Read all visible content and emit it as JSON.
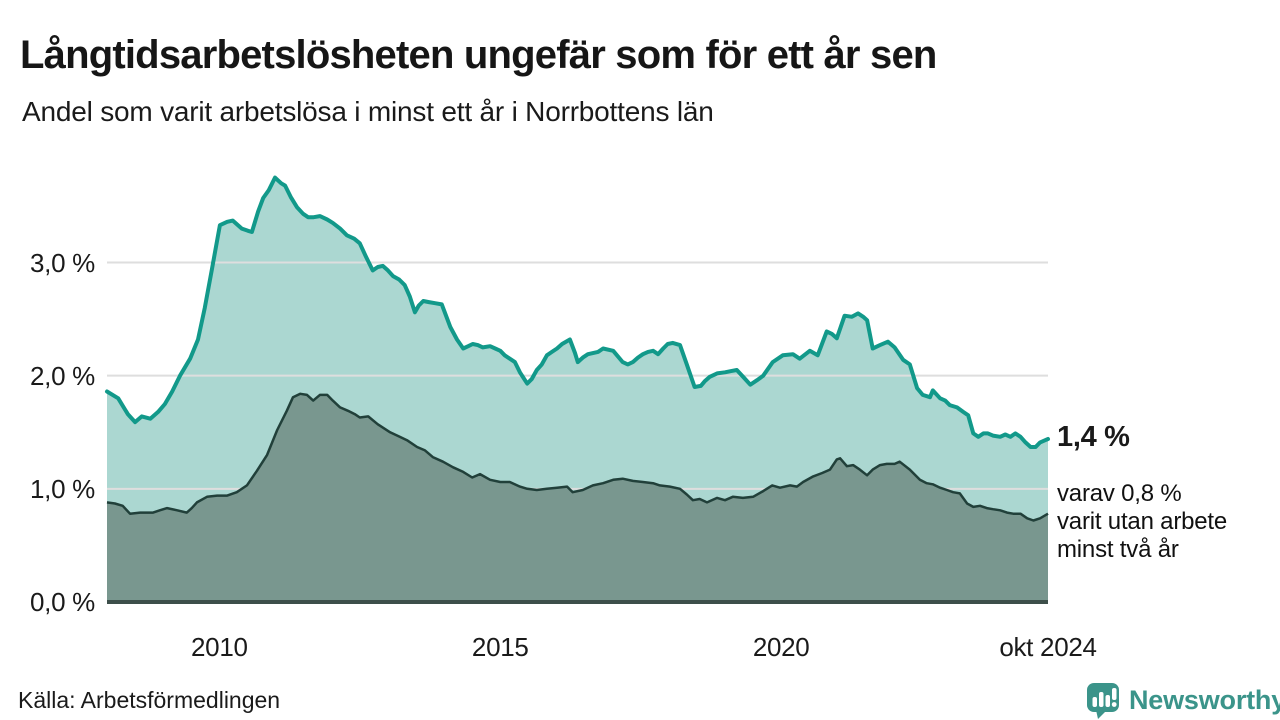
{
  "header": {
    "title": "Långtidsarbetslösheten ungefär som för ett år sen",
    "subtitle": "Andel som varit arbetslösa i minst ett år i Norrbottens län"
  },
  "annotation": {
    "latest_value": "1,4 %",
    "note_lines": [
      "varav 0,8 %",
      "varit utan arbete",
      "minst två år"
    ]
  },
  "footer": {
    "source": "Källa: Arbetsförmedlingen",
    "logo_text": "Newsworthy"
  },
  "colors": {
    "series1_line": "#12998a",
    "series1_fill": "#abd7d1",
    "series2_line": "#21403a",
    "series2_fill": "#79978f",
    "gridline": "#dedede",
    "baseline": "#3d4f4a",
    "text": "#1a1a1a",
    "logo": "#3b948a"
  },
  "chart_data": {
    "type": "area",
    "title": "Långtidsarbetslösheten ungefär som för ett år sen",
    "subtitle": "Andel som varit arbetslösa i minst ett år i Norrbottens län",
    "unit": "%",
    "xlabel": "",
    "ylabel": "",
    "grid": true,
    "legend_position": "none",
    "xlim": [
      2008.0,
      2024.75
    ],
    "ylim": [
      0,
      3.95
    ],
    "x_ticks": [
      {
        "x": 2010,
        "label": "2010"
      },
      {
        "x": 2015,
        "label": "2015"
      },
      {
        "x": 2020,
        "label": "2020"
      },
      {
        "x": 2024.75,
        "label": "okt 2024"
      }
    ],
    "y_ticks": [
      {
        "v": 0,
        "label": "0,0 %"
      },
      {
        "v": 1,
        "label": "1,0 %"
      },
      {
        "v": 2,
        "label": "2,0 %"
      },
      {
        "v": 3,
        "label": "3,0 %"
      }
    ],
    "series": [
      {
        "name": "Arbetslösa minst ett år",
        "last_value_label": "1,4 %",
        "points": [
          [
            2008.0,
            1.86
          ],
          [
            2008.2,
            1.8
          ],
          [
            2008.37,
            1.66
          ],
          [
            2008.5,
            1.59
          ],
          [
            2008.62,
            1.64
          ],
          [
            2008.77,
            1.62
          ],
          [
            2008.91,
            1.68
          ],
          [
            2009.03,
            1.75
          ],
          [
            2009.16,
            1.86
          ],
          [
            2009.3,
            2.0
          ],
          [
            2009.48,
            2.15
          ],
          [
            2009.62,
            2.32
          ],
          [
            2009.74,
            2.6
          ],
          [
            2009.87,
            2.95
          ],
          [
            2010.01,
            3.33
          ],
          [
            2010.14,
            3.36
          ],
          [
            2010.24,
            3.37
          ],
          [
            2010.4,
            3.3
          ],
          [
            2010.51,
            3.28
          ],
          [
            2010.58,
            3.27
          ],
          [
            2010.69,
            3.45
          ],
          [
            2010.78,
            3.57
          ],
          [
            2010.88,
            3.64
          ],
          [
            2010.99,
            3.75
          ],
          [
            2011.1,
            3.7
          ],
          [
            2011.17,
            3.68
          ],
          [
            2011.27,
            3.58
          ],
          [
            2011.38,
            3.49
          ],
          [
            2011.49,
            3.43
          ],
          [
            2011.58,
            3.4
          ],
          [
            2011.68,
            3.4
          ],
          [
            2011.79,
            3.41
          ],
          [
            2011.92,
            3.38
          ],
          [
            2012.02,
            3.35
          ],
          [
            2012.15,
            3.3
          ],
          [
            2012.27,
            3.24
          ],
          [
            2012.4,
            3.21
          ],
          [
            2012.5,
            3.17
          ],
          [
            2012.61,
            3.05
          ],
          [
            2012.73,
            2.93
          ],
          [
            2012.82,
            2.96
          ],
          [
            2012.91,
            2.97
          ],
          [
            2013.0,
            2.93
          ],
          [
            2013.09,
            2.88
          ],
          [
            2013.2,
            2.85
          ],
          [
            2013.3,
            2.8
          ],
          [
            2013.39,
            2.7
          ],
          [
            2013.48,
            2.56
          ],
          [
            2013.55,
            2.62
          ],
          [
            2013.63,
            2.66
          ],
          [
            2013.73,
            2.65
          ],
          [
            2013.84,
            2.64
          ],
          [
            2013.96,
            2.63
          ],
          [
            2014.11,
            2.43
          ],
          [
            2014.23,
            2.32
          ],
          [
            2014.34,
            2.24
          ],
          [
            2014.43,
            2.26
          ],
          [
            2014.51,
            2.28
          ],
          [
            2014.6,
            2.27
          ],
          [
            2014.69,
            2.25
          ],
          [
            2014.82,
            2.26
          ],
          [
            2014.91,
            2.24
          ],
          [
            2015.0,
            2.22
          ],
          [
            2015.08,
            2.18
          ],
          [
            2015.17,
            2.15
          ],
          [
            2015.26,
            2.12
          ],
          [
            2015.35,
            2.03
          ],
          [
            2015.48,
            1.93
          ],
          [
            2015.56,
            1.97
          ],
          [
            2015.65,
            2.05
          ],
          [
            2015.74,
            2.1
          ],
          [
            2015.83,
            2.18
          ],
          [
            2015.92,
            2.21
          ],
          [
            2016.01,
            2.24
          ],
          [
            2016.1,
            2.28
          ],
          [
            2016.24,
            2.32
          ],
          [
            2016.33,
            2.2
          ],
          [
            2016.38,
            2.12
          ],
          [
            2016.47,
            2.16
          ],
          [
            2016.56,
            2.19
          ],
          [
            2016.74,
            2.21
          ],
          [
            2016.83,
            2.24
          ],
          [
            2017.01,
            2.22
          ],
          [
            2017.18,
            2.12
          ],
          [
            2017.27,
            2.1
          ],
          [
            2017.36,
            2.12
          ],
          [
            2017.45,
            2.16
          ],
          [
            2017.54,
            2.19
          ],
          [
            2017.63,
            2.21
          ],
          [
            2017.72,
            2.22
          ],
          [
            2017.81,
            2.19
          ],
          [
            2017.9,
            2.24
          ],
          [
            2017.98,
            2.28
          ],
          [
            2018.07,
            2.29
          ],
          [
            2018.2,
            2.27
          ],
          [
            2018.32,
            2.1
          ],
          [
            2018.46,
            1.9
          ],
          [
            2018.57,
            1.91
          ],
          [
            2018.64,
            1.95
          ],
          [
            2018.73,
            1.99
          ],
          [
            2018.86,
            2.02
          ],
          [
            2019.0,
            2.03
          ],
          [
            2019.11,
            2.04
          ],
          [
            2019.21,
            2.05
          ],
          [
            2019.34,
            1.98
          ],
          [
            2019.45,
            1.92
          ],
          [
            2019.57,
            1.96
          ],
          [
            2019.68,
            2.0
          ],
          [
            2019.85,
            2.12
          ],
          [
            2020.03,
            2.18
          ],
          [
            2020.21,
            2.19
          ],
          [
            2020.33,
            2.15
          ],
          [
            2020.51,
            2.22
          ],
          [
            2020.65,
            2.18
          ],
          [
            2020.81,
            2.39
          ],
          [
            2020.9,
            2.37
          ],
          [
            2020.99,
            2.33
          ],
          [
            2021.13,
            2.53
          ],
          [
            2021.26,
            2.52
          ],
          [
            2021.37,
            2.55
          ],
          [
            2021.46,
            2.52
          ],
          [
            2021.53,
            2.49
          ],
          [
            2021.63,
            2.24
          ],
          [
            2021.76,
            2.27
          ],
          [
            2021.9,
            2.3
          ],
          [
            2022.02,
            2.25
          ],
          [
            2022.17,
            2.14
          ],
          [
            2022.29,
            2.1
          ],
          [
            2022.42,
            1.89
          ],
          [
            2022.52,
            1.83
          ],
          [
            2022.65,
            1.81
          ],
          [
            2022.7,
            1.87
          ],
          [
            2022.83,
            1.8
          ],
          [
            2022.92,
            1.78
          ],
          [
            2023.0,
            1.74
          ],
          [
            2023.13,
            1.72
          ],
          [
            2023.24,
            1.68
          ],
          [
            2023.33,
            1.65
          ],
          [
            2023.42,
            1.49
          ],
          [
            2023.51,
            1.46
          ],
          [
            2023.6,
            1.49
          ],
          [
            2023.68,
            1.49
          ],
          [
            2023.77,
            1.47
          ],
          [
            2023.9,
            1.46
          ],
          [
            2023.99,
            1.48
          ],
          [
            2024.08,
            1.46
          ],
          [
            2024.17,
            1.49
          ],
          [
            2024.26,
            1.46
          ],
          [
            2024.35,
            1.41
          ],
          [
            2024.44,
            1.37
          ],
          [
            2024.53,
            1.37
          ],
          [
            2024.61,
            1.41
          ],
          [
            2024.7,
            1.43
          ],
          [
            2024.75,
            1.44
          ]
        ]
      },
      {
        "name": "Arbetslösa minst två år",
        "last_value_label": "0,8 %",
        "points": [
          [
            2008.0,
            0.88
          ],
          [
            2008.14,
            0.87
          ],
          [
            2008.28,
            0.85
          ],
          [
            2008.41,
            0.78
          ],
          [
            2008.59,
            0.79
          ],
          [
            2008.82,
            0.79
          ],
          [
            2008.94,
            0.81
          ],
          [
            2009.07,
            0.83
          ],
          [
            2009.25,
            0.81
          ],
          [
            2009.42,
            0.79
          ],
          [
            2009.51,
            0.83
          ],
          [
            2009.6,
            0.88
          ],
          [
            2009.78,
            0.93
          ],
          [
            2009.96,
            0.94
          ],
          [
            2010.14,
            0.94
          ],
          [
            2010.31,
            0.97
          ],
          [
            2010.49,
            1.03
          ],
          [
            2010.67,
            1.16
          ],
          [
            2010.85,
            1.3
          ],
          [
            2011.03,
            1.52
          ],
          [
            2011.2,
            1.69
          ],
          [
            2011.31,
            1.81
          ],
          [
            2011.44,
            1.84
          ],
          [
            2011.56,
            1.83
          ],
          [
            2011.67,
            1.78
          ],
          [
            2011.79,
            1.83
          ],
          [
            2011.92,
            1.83
          ],
          [
            2012.02,
            1.78
          ],
          [
            2012.15,
            1.72
          ],
          [
            2012.29,
            1.69
          ],
          [
            2012.41,
            1.66
          ],
          [
            2012.5,
            1.63
          ],
          [
            2012.65,
            1.64
          ],
          [
            2012.82,
            1.57
          ],
          [
            2013.04,
            1.5
          ],
          [
            2013.21,
            1.46
          ],
          [
            2013.34,
            1.43
          ],
          [
            2013.52,
            1.37
          ],
          [
            2013.66,
            1.34
          ],
          [
            2013.8,
            1.28
          ],
          [
            2013.98,
            1.24
          ],
          [
            2014.16,
            1.19
          ],
          [
            2014.34,
            1.15
          ],
          [
            2014.5,
            1.1
          ],
          [
            2014.64,
            1.13
          ],
          [
            2014.82,
            1.08
          ],
          [
            2015.0,
            1.06
          ],
          [
            2015.17,
            1.06
          ],
          [
            2015.35,
            1.02
          ],
          [
            2015.48,
            1.0
          ],
          [
            2015.65,
            0.99
          ],
          [
            2015.83,
            1.0
          ],
          [
            2016.01,
            1.01
          ],
          [
            2016.19,
            1.02
          ],
          [
            2016.29,
            0.97
          ],
          [
            2016.47,
            0.99
          ],
          [
            2016.65,
            1.03
          ],
          [
            2016.83,
            1.05
          ],
          [
            2017.01,
            1.08
          ],
          [
            2017.18,
            1.09
          ],
          [
            2017.36,
            1.07
          ],
          [
            2017.54,
            1.06
          ],
          [
            2017.72,
            1.05
          ],
          [
            2017.84,
            1.03
          ],
          [
            2018.02,
            1.02
          ],
          [
            2018.2,
            1.0
          ],
          [
            2018.32,
            0.95
          ],
          [
            2018.43,
            0.9
          ],
          [
            2018.55,
            0.91
          ],
          [
            2018.68,
            0.88
          ],
          [
            2018.86,
            0.92
          ],
          [
            2019.0,
            0.9
          ],
          [
            2019.14,
            0.93
          ],
          [
            2019.32,
            0.92
          ],
          [
            2019.5,
            0.93
          ],
          [
            2019.68,
            0.98
          ],
          [
            2019.84,
            1.03
          ],
          [
            2019.98,
            1.01
          ],
          [
            2020.16,
            1.03
          ],
          [
            2020.28,
            1.02
          ],
          [
            2020.39,
            1.06
          ],
          [
            2020.57,
            1.11
          ],
          [
            2020.73,
            1.14
          ],
          [
            2020.87,
            1.17
          ],
          [
            2020.99,
            1.26
          ],
          [
            2021.05,
            1.27
          ],
          [
            2021.17,
            1.2
          ],
          [
            2021.28,
            1.21
          ],
          [
            2021.4,
            1.17
          ],
          [
            2021.53,
            1.12
          ],
          [
            2021.63,
            1.17
          ],
          [
            2021.76,
            1.21
          ],
          [
            2021.88,
            1.22
          ],
          [
            2022.02,
            1.22
          ],
          [
            2022.11,
            1.24
          ],
          [
            2022.29,
            1.17
          ],
          [
            2022.47,
            1.08
          ],
          [
            2022.59,
            1.05
          ],
          [
            2022.7,
            1.04
          ],
          [
            2022.83,
            1.01
          ],
          [
            2022.95,
            0.99
          ],
          [
            2023.06,
            0.97
          ],
          [
            2023.18,
            0.96
          ],
          [
            2023.31,
            0.87
          ],
          [
            2023.42,
            0.84
          ],
          [
            2023.54,
            0.85
          ],
          [
            2023.66,
            0.83
          ],
          [
            2023.77,
            0.82
          ],
          [
            2023.9,
            0.81
          ],
          [
            2024.02,
            0.79
          ],
          [
            2024.13,
            0.78
          ],
          [
            2024.26,
            0.78
          ],
          [
            2024.38,
            0.74
          ],
          [
            2024.49,
            0.72
          ],
          [
            2024.61,
            0.74
          ],
          [
            2024.75,
            0.78
          ]
        ]
      }
    ]
  }
}
